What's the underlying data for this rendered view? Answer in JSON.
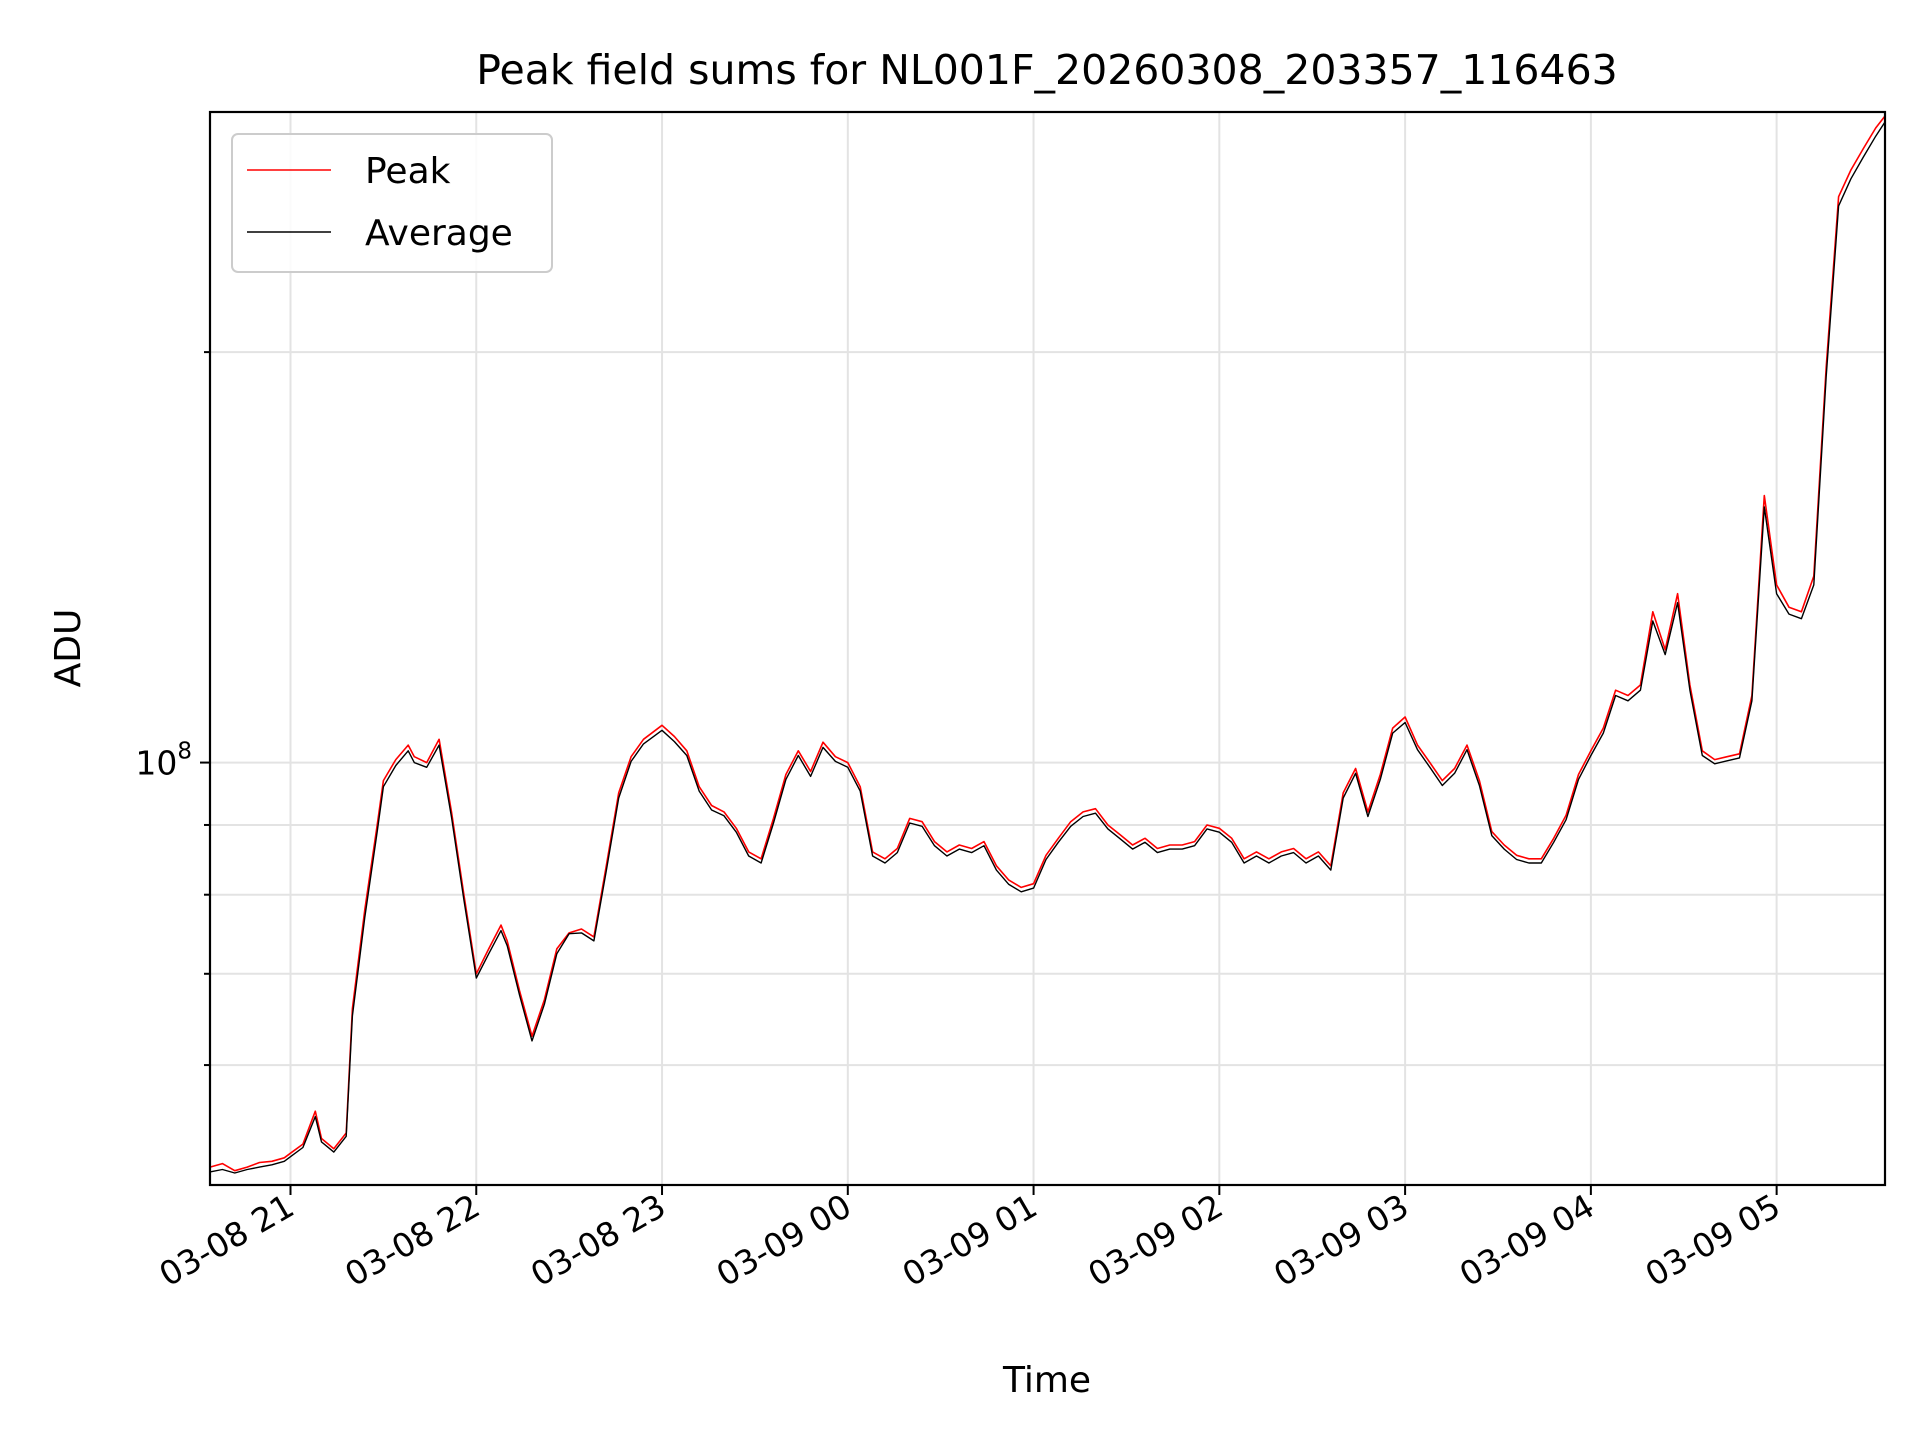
{
  "chart_data": {
    "type": "line",
    "title": "Peak field sums for NL001F_20260308_203357_116463",
    "xlabel": "Time",
    "ylabel": "ADU",
    "y_scale": "log",
    "grid": true,
    "legend_position": "top-left",
    "xlim": [
      "2026-03-08 20:34",
      "2026-03-09 05:35"
    ],
    "ylim": [
      49000000,
      300000000
    ],
    "x_ticks": [
      "2026-03-08 21:00",
      "2026-03-08 22:00",
      "2026-03-08 23:00",
      "2026-03-09 00:00",
      "2026-03-09 01:00",
      "2026-03-09 02:00",
      "2026-03-09 03:00",
      "2026-03-09 04:00",
      "2026-03-09 05:00"
    ],
    "x_tick_labels": [
      "03-08 21",
      "03-08 22",
      "03-08 23",
      "03-09 00",
      "03-09 01",
      "03-09 02",
      "03-09 03",
      "03-09 04",
      "03-09 05"
    ],
    "y_major_ticks": [
      100000000
    ],
    "y_major_tick_labels": [
      {
        "base": "10",
        "exponent": "8"
      }
    ],
    "y_minor_ticks": [
      60000000,
      70000000,
      80000000,
      90000000,
      200000000
    ],
    "x": [
      "2026-03-08 20:34",
      "2026-03-08 20:38",
      "2026-03-08 20:42",
      "2026-03-08 20:46",
      "2026-03-08 20:50",
      "2026-03-08 20:54",
      "2026-03-08 20:58",
      "2026-03-08 21:00",
      "2026-03-08 21:04",
      "2026-03-08 21:08",
      "2026-03-08 21:10",
      "2026-03-08 21:14",
      "2026-03-08 21:18",
      "2026-03-08 21:20",
      "2026-03-08 21:24",
      "2026-03-08 21:28",
      "2026-03-08 21:30",
      "2026-03-08 21:34",
      "2026-03-08 21:38",
      "2026-03-08 21:40",
      "2026-03-08 21:44",
      "2026-03-08 21:48",
      "2026-03-08 21:52",
      "2026-03-08 21:56",
      "2026-03-08 22:00",
      "2026-03-08 22:04",
      "2026-03-08 22:08",
      "2026-03-08 22:10",
      "2026-03-08 22:14",
      "2026-03-08 22:18",
      "2026-03-08 22:22",
      "2026-03-08 22:26",
      "2026-03-08 22:30",
      "2026-03-08 22:34",
      "2026-03-08 22:38",
      "2026-03-08 22:42",
      "2026-03-08 22:46",
      "2026-03-08 22:50",
      "2026-03-08 22:54",
      "2026-03-08 23:00",
      "2026-03-08 23:04",
      "2026-03-08 23:08",
      "2026-03-08 23:12",
      "2026-03-08 23:16",
      "2026-03-08 23:20",
      "2026-03-08 23:24",
      "2026-03-08 23:28",
      "2026-03-08 23:32",
      "2026-03-08 23:36",
      "2026-03-08 23:40",
      "2026-03-08 23:44",
      "2026-03-08 23:48",
      "2026-03-08 23:52",
      "2026-03-08 23:56",
      "2026-03-09 00:00",
      "2026-03-09 00:04",
      "2026-03-09 00:08",
      "2026-03-09 00:12",
      "2026-03-09 00:16",
      "2026-03-09 00:20",
      "2026-03-09 00:24",
      "2026-03-09 00:28",
      "2026-03-09 00:32",
      "2026-03-09 00:36",
      "2026-03-09 00:40",
      "2026-03-09 00:44",
      "2026-03-09 00:48",
      "2026-03-09 00:52",
      "2026-03-09 00:56",
      "2026-03-09 01:00",
      "2026-03-09 01:04",
      "2026-03-09 01:08",
      "2026-03-09 01:12",
      "2026-03-09 01:16",
      "2026-03-09 01:20",
      "2026-03-09 01:24",
      "2026-03-09 01:28",
      "2026-03-09 01:32",
      "2026-03-09 01:36",
      "2026-03-09 01:40",
      "2026-03-09 01:44",
      "2026-03-09 01:48",
      "2026-03-09 01:52",
      "2026-03-09 01:56",
      "2026-03-09 02:00",
      "2026-03-09 02:04",
      "2026-03-09 02:08",
      "2026-03-09 02:12",
      "2026-03-09 02:16",
      "2026-03-09 02:20",
      "2026-03-09 02:24",
      "2026-03-09 02:28",
      "2026-03-09 02:32",
      "2026-03-09 02:36",
      "2026-03-09 02:40",
      "2026-03-09 02:44",
      "2026-03-09 02:48",
      "2026-03-09 02:52",
      "2026-03-09 02:56",
      "2026-03-09 03:00",
      "2026-03-09 03:04",
      "2026-03-09 03:08",
      "2026-03-09 03:12",
      "2026-03-09 03:16",
      "2026-03-09 03:20",
      "2026-03-09 03:24",
      "2026-03-09 03:28",
      "2026-03-09 03:32",
      "2026-03-09 03:36",
      "2026-03-09 03:40",
      "2026-03-09 03:44",
      "2026-03-09 03:48",
      "2026-03-09 03:52",
      "2026-03-09 03:56",
      "2026-03-09 04:00",
      "2026-03-09 04:04",
      "2026-03-09 04:08",
      "2026-03-09 04:12",
      "2026-03-09 04:16",
      "2026-03-09 04:20",
      "2026-03-09 04:24",
      "2026-03-09 04:28",
      "2026-03-09 04:32",
      "2026-03-09 04:36",
      "2026-03-09 04:40",
      "2026-03-09 04:44",
      "2026-03-09 04:48",
      "2026-03-09 04:52",
      "2026-03-09 04:56",
      "2026-03-09 05:00",
      "2026-03-09 05:04",
      "2026-03-09 05:08",
      "2026-03-09 05:12",
      "2026-03-09 05:16",
      "2026-03-09 05:20",
      "2026-03-09 05:24",
      "2026-03-09 05:28",
      "2026-03-09 05:32",
      "2026-03-09 05:35"
    ],
    "series": [
      {
        "name": "Peak",
        "color": "#ff0000",
        "values": [
          50500000,
          50800000,
          50200000,
          50500000,
          50900000,
          51000000,
          51300000,
          51700000,
          52500000,
          55500000,
          53000000,
          52100000,
          53500000,
          66000000,
          78000000,
          90000000,
          97000000,
          100500000,
          103000000,
          101000000,
          100000000,
          104000000,
          92000000,
          80000000,
          70000000,
          73000000,
          76000000,
          74000000,
          68000000,
          63000000,
          67000000,
          73000000,
          75000000,
          75500000,
          74500000,
          84000000,
          95000000,
          101000000,
          104000000,
          106500000,
          104500000,
          102000000,
          96000000,
          93000000,
          92000000,
          89500000,
          86000000,
          85000000,
          91000000,
          98000000,
          102000000,
          98500000,
          103500000,
          101000000,
          100000000,
          96000000,
          86000000,
          85000000,
          86500000,
          91000000,
          90500000,
          87500000,
          86000000,
          87000000,
          86500000,
          87500000,
          84000000,
          82000000,
          81000000,
          81500000,
          85500000,
          88000000,
          90500000,
          92000000,
          92500000,
          90000000,
          88500000,
          87000000,
          88000000,
          86500000,
          87000000,
          87000000,
          87500000,
          90000000,
          89500000,
          88000000,
          85000000,
          86000000,
          85000000,
          86000000,
          86500000,
          85000000,
          86000000,
          84000000,
          95000000,
          99000000,
          92000000,
          98000000,
          106000000,
          108000000,
          103000000,
          100000000,
          97000000,
          99000000,
          103000000,
          97000000,
          89000000,
          87000000,
          85500000,
          85000000,
          85000000,
          88000000,
          91500000,
          98000000,
          102000000,
          106000000,
          113000000,
          112000000,
          114000000,
          129000000,
          121000000,
          133000000,
          114000000,
          102000000,
          100500000,
          101000000,
          101500000,
          112000000,
          157000000,
          135000000,
          130000000,
          129000000,
          137000000,
          195000000,
          260000000,
          272000000,
          282000000,
          292000000,
          298000000
        ]
      },
      {
        "name": "Average",
        "color": "#000000",
        "values": [
          50100000,
          50300000,
          50000000,
          50300000,
          50500000,
          50700000,
          51000000,
          51400000,
          52200000,
          55000000,
          52700000,
          51800000,
          53200000,
          65200000,
          77000000,
          89000000,
          96000000,
          99500000,
          102000000,
          100000000,
          99200000,
          103000000,
          91200000,
          79300000,
          69500000,
          72400000,
          75300000,
          73400000,
          67500000,
          62500000,
          66500000,
          72400000,
          74900000,
          75000000,
          74000000,
          83300000,
          94200000,
          100200000,
          103200000,
          105600000,
          103600000,
          101200000,
          95300000,
          92300000,
          91400000,
          88900000,
          85400000,
          84400000,
          90300000,
          97200000,
          101200000,
          97700000,
          102600000,
          100200000,
          99200000,
          95300000,
          85400000,
          84400000,
          85900000,
          90300000,
          89800000,
          86900000,
          85400000,
          86400000,
          85900000,
          86900000,
          83400000,
          81400000,
          80400000,
          80900000,
          84900000,
          87400000,
          89800000,
          91300000,
          91800000,
          89400000,
          87900000,
          86400000,
          87400000,
          85900000,
          86400000,
          86400000,
          86900000,
          89400000,
          88900000,
          87400000,
          84400000,
          85400000,
          84400000,
          85400000,
          85900000,
          84400000,
          85400000,
          83400000,
          94200000,
          98200000,
          91300000,
          97200000,
          105100000,
          107000000,
          102200000,
          99200000,
          96200000,
          98200000,
          102200000,
          96200000,
          88400000,
          86400000,
          84900000,
          84400000,
          84400000,
          87400000,
          90800000,
          97200000,
          101200000,
          105100000,
          112000000,
          111000000,
          113000000,
          127000000,
          120000000,
          131000000,
          113000000,
          101200000,
          99800000,
          100300000,
          100800000,
          111000000,
          154000000,
          133000000,
          128500000,
          127500000,
          135000000,
          192000000,
          256000000,
          268000000,
          278000000,
          288000000,
          295000000
        ]
      }
    ]
  }
}
